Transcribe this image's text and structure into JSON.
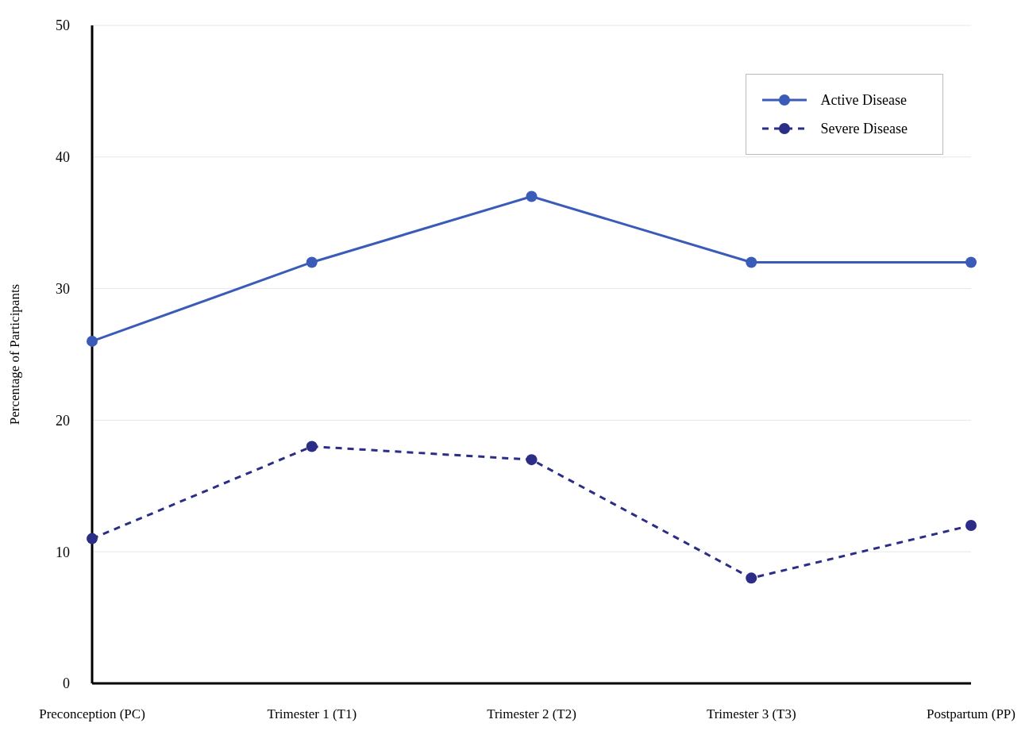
{
  "chart_data": {
    "type": "line",
    "ylabel": "Percentage of Participants",
    "categories": [
      "Preconception (PC)",
      "Trimester 1 (T1)",
      "Trimester 2 (T2)",
      "Trimester 3 (T3)",
      "Postpartum (PP)"
    ],
    "series": [
      {
        "name": "Active Disease",
        "color": "#3a5cb8",
        "values": [
          26,
          32,
          37,
          32,
          32
        ],
        "line_style": "solid"
      },
      {
        "name": "Severe Disease",
        "color": "#2b2d86",
        "values": [
          11,
          18,
          17,
          8,
          12
        ],
        "line_style": "dashed"
      }
    ],
    "ylim": [
      0,
      50
    ],
    "yticks": [
      0,
      10,
      20,
      30,
      40,
      50
    ],
    "grid": "y",
    "legend": "top right",
    "marker": "circle"
  }
}
